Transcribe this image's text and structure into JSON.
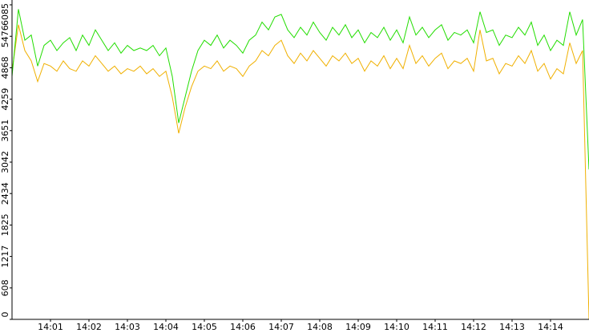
{
  "chart_data": {
    "type": "line",
    "categories": [
      null,
      null,
      null,
      null,
      null,
      null,
      "14:01",
      null,
      null,
      null,
      null,
      null,
      "14:02",
      null,
      null,
      null,
      null,
      null,
      "14:03",
      null,
      null,
      null,
      null,
      null,
      "14:04",
      null,
      null,
      null,
      null,
      null,
      "14:05",
      null,
      null,
      null,
      null,
      null,
      "14:06",
      null,
      null,
      null,
      null,
      null,
      "14:07",
      null,
      null,
      null,
      null,
      null,
      "14:08",
      null,
      null,
      null,
      null,
      null,
      "14:09",
      null,
      null,
      null,
      null,
      null,
      "14:10",
      null,
      null,
      null,
      null,
      null,
      "14:11",
      null,
      null,
      null,
      null,
      null,
      "14:12",
      null,
      null,
      null,
      null,
      null,
      "14:13",
      null,
      null,
      null,
      null,
      null,
      "14:14",
      null,
      null,
      null,
      null,
      null,
      null
    ],
    "series": [
      {
        "color": "#22dd00",
        "values": [
          4700,
          6000,
          5400,
          5500,
          4900,
          5300,
          5400,
          5200,
          5350,
          5450,
          5200,
          5500,
          5300,
          5600,
          5400,
          5200,
          5350,
          5150,
          5300,
          5200,
          5250,
          5200,
          5300,
          5100,
          5250,
          4700,
          3800,
          4300,
          4800,
          5200,
          5400,
          5300,
          5500,
          5250,
          5400,
          5300,
          5150,
          5400,
          5500,
          5750,
          5600,
          5850,
          5900,
          5600,
          5450,
          5650,
          5500,
          5750,
          5550,
          5400,
          5650,
          5500,
          5700,
          5450,
          5600,
          5350,
          5550,
          5450,
          5650,
          5400,
          5600,
          5350,
          5850,
          5500,
          5650,
          5450,
          5600,
          5700,
          5400,
          5550,
          5500,
          5600,
          5350,
          5950,
          5550,
          5600,
          5300,
          5500,
          5450,
          5650,
          5500,
          5750,
          5300,
          5500,
          5200,
          5400,
          5300,
          5950,
          5500,
          5800,
          2900
        ]
      },
      {
        "color": "#f0b000",
        "values": [
          4800,
          5700,
          5200,
          5000,
          4600,
          4950,
          4900,
          4800,
          5000,
          4850,
          4800,
          5000,
          4900,
          5100,
          4950,
          4800,
          4900,
          4750,
          4850,
          4800,
          4900,
          4750,
          4850,
          4700,
          4800,
          4300,
          3600,
          4100,
          4500,
          4800,
          4900,
          4850,
          5000,
          4800,
          4900,
          4850,
          4700,
          4900,
          5000,
          5200,
          5100,
          5300,
          5400,
          5100,
          4950,
          5150,
          5000,
          5200,
          5050,
          4900,
          5100,
          5000,
          5150,
          4950,
          5050,
          4800,
          5000,
          4900,
          5100,
          4850,
          5050,
          4850,
          5300,
          4950,
          5100,
          4900,
          5050,
          5150,
          4850,
          5000,
          4950,
          5050,
          4800,
          5600,
          5000,
          5050,
          4750,
          4950,
          4900,
          5100,
          4950,
          5200,
          4800,
          4950,
          4650,
          4850,
          4750,
          5350,
          4950,
          5200,
          0
        ]
      }
    ],
    "ylim": [
      0,
      6085
    ],
    "yticks": [
      0,
      608,
      1217,
      1825,
      2434,
      3042,
      3651,
      4259,
      4868,
      5476,
      6085
    ]
  }
}
